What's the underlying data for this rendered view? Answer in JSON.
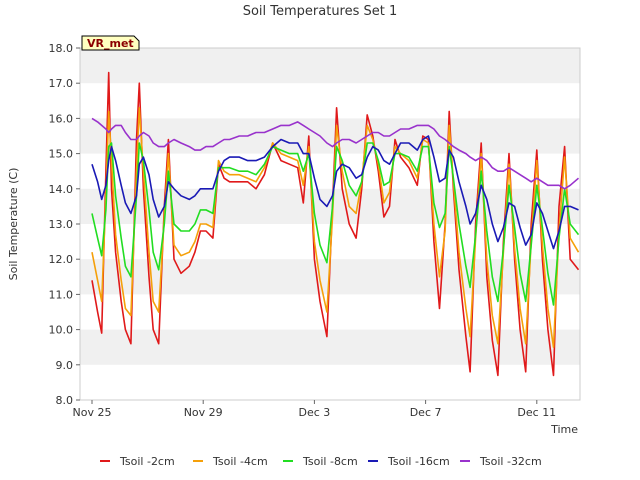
{
  "chart_data": {
    "type": "line",
    "title": "Soil Temperatures Set 1",
    "xlabel": "Time",
    "ylabel": "Soil Temperature (C)",
    "badge": "VR_met",
    "ylim": [
      8.0,
      18.0
    ],
    "yticks": [
      "8.0",
      "9.0",
      "10.0",
      "11.0",
      "12.0",
      "13.0",
      "14.0",
      "15.0",
      "16.0",
      "17.0",
      "18.0"
    ],
    "xlim": [
      "Nov 25",
      "Dec 13"
    ],
    "xticks": [
      {
        "label": "Nov 25",
        "day": 0
      },
      {
        "label": "Nov 29",
        "day": 4
      },
      {
        "label": "Dec 3",
        "day": 8
      },
      {
        "label": "Dec 7",
        "day": 12
      },
      {
        "label": "Dec 11",
        "day": 16
      }
    ],
    "grid": "horizontal bands",
    "legend": "bottom",
    "x_days": [
      0,
      0.2,
      0.35,
      0.5,
      0.6,
      0.7,
      0.85,
      1.05,
      1.2,
      1.4,
      1.6,
      1.7,
      1.85,
      2.05,
      2.2,
      2.4,
      2.6,
      2.75,
      2.95,
      3.2,
      3.5,
      3.7,
      3.9,
      4.1,
      4.35,
      4.55,
      4.75,
      4.95,
      5.3,
      5.6,
      5.9,
      6.2,
      6.5,
      6.8,
      7.1,
      7.4,
      7.6,
      7.8,
      8.0,
      8.2,
      8.45,
      8.65,
      8.8,
      9.0,
      9.25,
      9.5,
      9.7,
      9.9,
      10.1,
      10.3,
      10.5,
      10.7,
      10.9,
      11.1,
      11.4,
      11.7,
      11.9,
      12.1,
      12.3,
      12.5,
      12.7,
      12.85,
      13.0,
      13.2,
      13.45,
      13.6,
      13.8,
      14.0,
      14.2,
      14.4,
      14.6,
      14.8,
      15.0,
      15.2,
      15.4,
      15.6,
      15.8,
      16.0,
      16.2,
      16.4,
      16.6,
      16.8,
      17.0,
      17.2,
      17.5
    ],
    "series": [
      {
        "name": "Tsoil -2cm",
        "color": "#e0191a",
        "values": [
          11.4,
          10.5,
          9.9,
          14.5,
          17.3,
          14.0,
          12.2,
          10.8,
          10.0,
          9.6,
          15.4,
          17.0,
          14.0,
          11.5,
          10.0,
          9.6,
          13.5,
          15.4,
          12.0,
          11.6,
          11.8,
          12.2,
          12.8,
          12.8,
          12.6,
          14.7,
          14.3,
          14.2,
          14.2,
          14.2,
          14.0,
          14.4,
          15.3,
          14.8,
          14.7,
          14.6,
          13.6,
          15.5,
          12.0,
          10.8,
          9.8,
          13.5,
          16.3,
          14.0,
          13.0,
          12.6,
          14.0,
          16.1,
          15.5,
          14.5,
          13.2,
          13.5,
          15.4,
          14.9,
          14.6,
          14.1,
          15.5,
          15.4,
          12.5,
          10.6,
          13.0,
          16.2,
          14.0,
          11.7,
          9.8,
          8.8,
          13.0,
          15.3,
          11.5,
          9.7,
          8.7,
          12.5,
          15.0,
          12.0,
          10.0,
          8.8,
          13.0,
          15.1,
          12.0,
          10.0,
          8.7,
          13.5,
          15.2,
          12.0,
          11.7
        ]
      },
      {
        "name": "Tsoil -4cm",
        "color": "#f5a00a",
        "values": [
          12.2,
          11.4,
          10.8,
          13.8,
          16.2,
          14.8,
          12.7,
          11.4,
          10.6,
          10.4,
          14.5,
          16.3,
          14.5,
          12.2,
          10.8,
          10.5,
          13.2,
          15.0,
          12.4,
          12.1,
          12.2,
          12.5,
          13.0,
          13.0,
          12.9,
          14.8,
          14.5,
          14.4,
          14.4,
          14.3,
          14.2,
          14.6,
          15.3,
          15.0,
          14.9,
          14.8,
          14.1,
          15.2,
          12.5,
          11.4,
          10.5,
          13.2,
          15.8,
          14.5,
          13.5,
          13.3,
          14.2,
          15.8,
          15.4,
          14.7,
          13.6,
          13.9,
          15.2,
          15.0,
          14.8,
          14.3,
          15.4,
          15.3,
          13.0,
          11.5,
          12.8,
          15.8,
          14.2,
          12.2,
          10.6,
          9.8,
          12.6,
          15.0,
          12.0,
          10.4,
          9.6,
          12.2,
          14.7,
          12.3,
          10.6,
          9.6,
          12.5,
          14.8,
          12.4,
          10.6,
          9.5,
          12.8,
          14.9,
          12.6,
          12.2
        ]
      },
      {
        "name": "Tsoil -8cm",
        "color": "#22dd22",
        "values": [
          13.3,
          12.6,
          12.1,
          13.4,
          15.2,
          15.3,
          13.8,
          12.6,
          11.8,
          11.5,
          13.8,
          15.3,
          14.8,
          13.4,
          12.2,
          11.7,
          13.0,
          14.5,
          13.0,
          12.8,
          12.8,
          13.0,
          13.4,
          13.4,
          13.3,
          14.6,
          14.6,
          14.6,
          14.5,
          14.5,
          14.4,
          14.7,
          15.2,
          15.1,
          15.0,
          15.0,
          14.5,
          15.0,
          13.3,
          12.4,
          11.9,
          13.5,
          15.2,
          14.8,
          14.1,
          13.8,
          14.2,
          15.3,
          15.3,
          14.8,
          14.1,
          14.2,
          15.0,
          15.0,
          14.9,
          14.5,
          15.2,
          15.2,
          13.6,
          12.9,
          13.3,
          15.2,
          14.3,
          13.0,
          11.8,
          11.2,
          12.7,
          14.5,
          12.8,
          11.5,
          10.8,
          12.3,
          14.1,
          12.9,
          11.6,
          10.8,
          12.4,
          14.1,
          12.9,
          11.6,
          10.7,
          12.6,
          14.0,
          13.0,
          12.7
        ]
      },
      {
        "name": "Tsoil -16cm",
        "color": "#1a1ab5",
        "values": [
          14.7,
          14.2,
          13.7,
          14.1,
          14.8,
          15.2,
          14.8,
          14.1,
          13.6,
          13.3,
          13.8,
          14.7,
          14.9,
          14.4,
          13.7,
          13.2,
          13.5,
          14.2,
          14.0,
          13.8,
          13.7,
          13.8,
          14.0,
          14.0,
          14.0,
          14.5,
          14.8,
          14.9,
          14.9,
          14.8,
          14.8,
          14.9,
          15.2,
          15.4,
          15.3,
          15.3,
          15.0,
          15.0,
          14.3,
          13.7,
          13.5,
          13.8,
          14.5,
          14.7,
          14.6,
          14.3,
          14.4,
          14.9,
          15.2,
          15.1,
          14.8,
          14.7,
          15.0,
          15.3,
          15.3,
          15.1,
          15.4,
          15.5,
          14.9,
          14.2,
          14.3,
          15.1,
          14.9,
          14.2,
          13.5,
          13.0,
          13.3,
          14.1,
          13.7,
          13.0,
          12.5,
          12.9,
          13.6,
          13.5,
          12.9,
          12.4,
          12.7,
          13.6,
          13.3,
          12.8,
          12.3,
          12.8,
          13.5,
          13.5,
          13.4
        ]
      },
      {
        "name": "Tsoil -32cm",
        "color": "#9932cc",
        "values": [
          16.0,
          15.9,
          15.8,
          15.7,
          15.6,
          15.7,
          15.8,
          15.8,
          15.6,
          15.4,
          15.4,
          15.5,
          15.6,
          15.5,
          15.3,
          15.2,
          15.2,
          15.3,
          15.4,
          15.3,
          15.2,
          15.1,
          15.1,
          15.2,
          15.2,
          15.3,
          15.4,
          15.4,
          15.5,
          15.5,
          15.6,
          15.6,
          15.7,
          15.8,
          15.8,
          15.9,
          15.8,
          15.7,
          15.6,
          15.5,
          15.3,
          15.2,
          15.3,
          15.4,
          15.4,
          15.3,
          15.4,
          15.5,
          15.6,
          15.6,
          15.5,
          15.5,
          15.6,
          15.7,
          15.7,
          15.8,
          15.8,
          15.8,
          15.7,
          15.5,
          15.4,
          15.3,
          15.2,
          15.1,
          15.0,
          14.9,
          14.8,
          14.9,
          14.8,
          14.6,
          14.5,
          14.5,
          14.6,
          14.5,
          14.4,
          14.3,
          14.2,
          14.3,
          14.2,
          14.1,
          14.1,
          14.1,
          14.0,
          14.1,
          14.3
        ]
      }
    ]
  }
}
